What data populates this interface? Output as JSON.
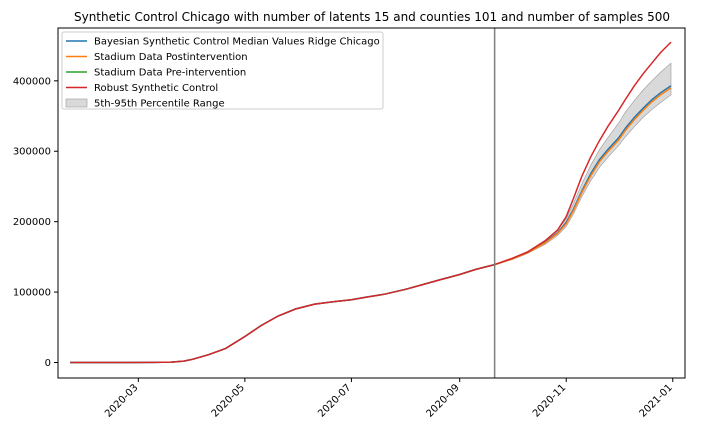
{
  "chart_data": {
    "type": "line",
    "title": "Synthetic Control Chicago with number of latents 15 and counties 101 and number of samples 500",
    "xlabel": "",
    "ylabel": "",
    "x_ticks": [
      "2020-03",
      "2020-05",
      "2020-07",
      "2020-09",
      "2020-11",
      "2021-01"
    ],
    "y_ticks": [
      0,
      100000,
      200000,
      300000,
      400000
    ],
    "xlim": [
      "2020-01-15",
      "2021-01-08"
    ],
    "ylim": [
      -22000,
      475000
    ],
    "intervention_date": "2020-09-21",
    "legend_position": "upper-left",
    "grid": false,
    "colors": {
      "bayesian": "#1f77b4",
      "post": "#ff7f0e",
      "pre": "#2ca02c",
      "robust": "#d62728",
      "band": "#bfbfbf",
      "vline": "#808080"
    },
    "legend": [
      {
        "key": "bayesian",
        "label": "Bayesian Synthetic Control Median Values Ridge Chicago",
        "kind": "line"
      },
      {
        "key": "post",
        "label": "Stadium Data Postintervention",
        "kind": "line"
      },
      {
        "key": "pre",
        "label": "Stadium Data Pre-intervention",
        "kind": "line"
      },
      {
        "key": "robust",
        "label": "Robust Synthetic Control",
        "kind": "line"
      },
      {
        "key": "band",
        "label": "5th-95th Percentile Range",
        "kind": "patch"
      }
    ],
    "pre_x": [
      "2020-01-22",
      "2020-02-15",
      "2020-03-10",
      "2020-03-20",
      "2020-03-27",
      "2020-04-01",
      "2020-04-10",
      "2020-04-20",
      "2020-05-01",
      "2020-05-10",
      "2020-05-20",
      "2020-05-30",
      "2020-06-10",
      "2020-06-20",
      "2020-07-01",
      "2020-07-10",
      "2020-07-20",
      "2020-08-01",
      "2020-08-10",
      "2020-08-20",
      "2020-09-01",
      "2020-09-10",
      "2020-09-21"
    ],
    "pre_y": [
      0,
      0,
      200,
      600,
      2000,
      4500,
      11000,
      20000,
      37000,
      52000,
      66000,
      76000,
      83000,
      86000,
      89000,
      93000,
      97000,
      104000,
      110000,
      117000,
      125000,
      132000,
      139000
    ],
    "post_x": [
      "2020-09-21",
      "2020-10-01",
      "2020-10-10",
      "2020-10-20",
      "2020-10-27",
      "2020-11-01",
      "2020-11-05",
      "2020-11-10",
      "2020-11-15",
      "2020-11-20",
      "2020-11-25",
      "2020-12-01",
      "2020-12-05",
      "2020-12-10",
      "2020-12-15",
      "2020-12-20",
      "2020-12-25",
      "2020-12-31"
    ],
    "stadium_post_y": [
      139000,
      147000,
      156000,
      170000,
      183000,
      197000,
      215000,
      242000,
      265000,
      285000,
      300000,
      316000,
      330000,
      345000,
      358000,
      370000,
      380000,
      390000
    ],
    "bayesian_y": [
      139000,
      147000,
      156000,
      171000,
      184000,
      199000,
      217000,
      244000,
      268000,
      288000,
      303000,
      319000,
      333000,
      348000,
      361000,
      373000,
      383000,
      393000
    ],
    "band_lower": [
      139000,
      146000,
      155000,
      168000,
      180000,
      193000,
      210000,
      236000,
      258000,
      277000,
      292000,
      308000,
      321000,
      335000,
      348000,
      359000,
      369000,
      380000
    ],
    "band_upper": [
      139000,
      148000,
      158000,
      174000,
      188000,
      204000,
      225000,
      254000,
      280000,
      302000,
      320000,
      340000,
      356000,
      372000,
      387000,
      400000,
      412000,
      425000
    ],
    "robust_y": [
      139000,
      148000,
      157000,
      173000,
      188000,
      207000,
      232000,
      265000,
      292000,
      315000,
      336000,
      358000,
      374000,
      393000,
      410000,
      425000,
      440000,
      455000
    ]
  }
}
